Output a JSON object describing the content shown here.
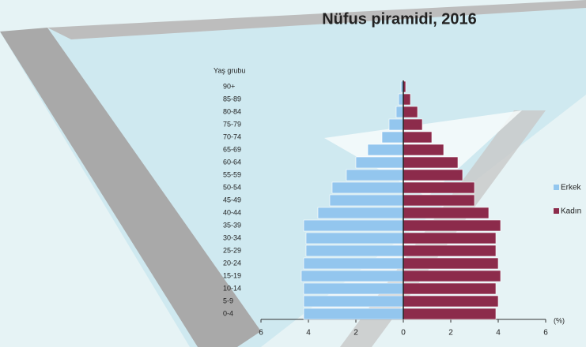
{
  "chart_data": {
    "type": "pyramid",
    "title": "Nüfus piramidi, 2016",
    "y_axis_label": "Yaş grubu",
    "x_axis_label": "(%)",
    "categories": [
      "0-4",
      "5-9",
      "10-14",
      "15-19",
      "20-24",
      "25-29",
      "30-34",
      "35-39",
      "40-44",
      "45-49",
      "50-54",
      "55-59",
      "60-64",
      "65-69",
      "70-74",
      "75-79",
      "80-84",
      "85-89",
      "90+"
    ],
    "series": [
      {
        "name": "Erkek",
        "color": "#93c6ee",
        "values": [
          -4.2,
          -4.2,
          -4.2,
          -4.3,
          -4.2,
          -4.1,
          -4.1,
          -4.2,
          -3.6,
          -3.1,
          -3.0,
          -2.4,
          -2.0,
          -1.5,
          -0.9,
          -0.6,
          -0.3,
          -0.2,
          -0.1
        ]
      },
      {
        "name": "Kadın",
        "color": "#8c2b4b",
        "values": [
          3.9,
          4.0,
          3.9,
          4.1,
          4.0,
          3.9,
          3.9,
          4.1,
          3.6,
          3.0,
          3.0,
          2.5,
          2.3,
          1.7,
          1.2,
          0.8,
          0.6,
          0.3,
          0.1
        ]
      }
    ],
    "xlim": [
      -6,
      6
    ],
    "xticks": [
      {
        "value": -6,
        "label": "6"
      },
      {
        "value": -4,
        "label": "4"
      },
      {
        "value": -2,
        "label": "2"
      },
      0,
      2,
      4,
      6
    ],
    "legend": "right"
  }
}
